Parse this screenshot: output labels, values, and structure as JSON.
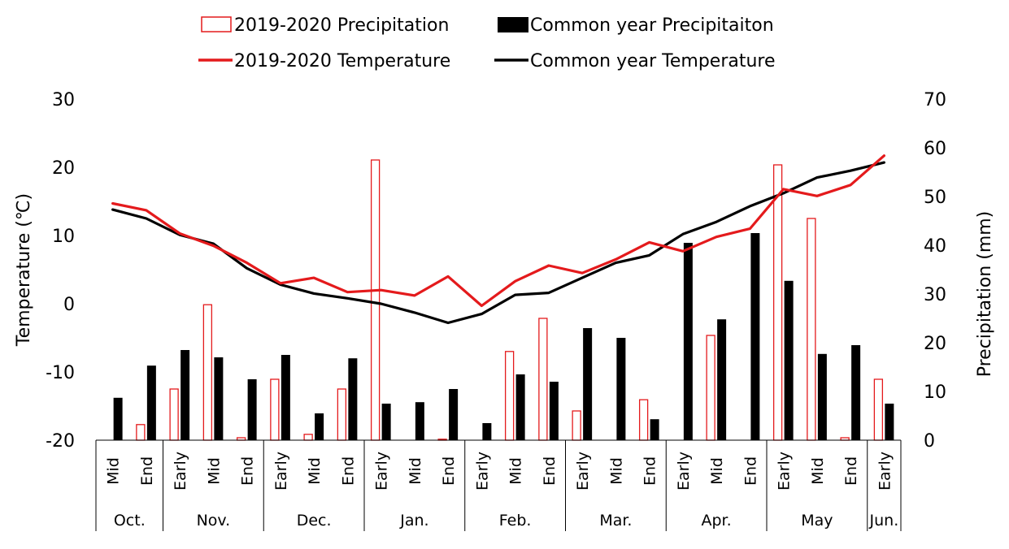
{
  "chart_data": {
    "type": "bar",
    "title": "",
    "ylabel": "Temperature (℃)",
    "y2label": "Precipitation (mm)",
    "ylim": [
      -20,
      30
    ],
    "y2lim": [
      0,
      70
    ],
    "yticks": [
      "30",
      "20",
      "10",
      "0",
      "-10",
      "-20"
    ],
    "y2ticks": [
      "70",
      "60",
      "50",
      "40",
      "30",
      "20",
      "10",
      "0"
    ],
    "categories": [
      "Mid",
      "End",
      "Early",
      "Mid",
      "End",
      "Early",
      "Mid",
      "End",
      "Early",
      "Mid",
      "End",
      "Early",
      "Mid",
      "End",
      "Early",
      "Mid",
      "End",
      "Early",
      "Mid",
      "End",
      "Early",
      "Mid",
      "End",
      "Early"
    ],
    "months": [
      {
        "name": "Oct.",
        "span": 2
      },
      {
        "name": "Nov.",
        "span": 3
      },
      {
        "name": "Dec.",
        "span": 3
      },
      {
        "name": "Jan.",
        "span": 3
      },
      {
        "name": "Feb.",
        "span": 3
      },
      {
        "name": "Mar.",
        "span": 3
      },
      {
        "name": "Apr.",
        "span": 3
      },
      {
        "name": "May",
        "span": 3
      },
      {
        "name": "Jun.",
        "span": 1
      }
    ],
    "legend": [
      "2019-2020 Precipitation",
      "Common year Precipitaiton",
      "2019-2020 Temperature",
      "Common year Temperature"
    ],
    "legend_position": "top",
    "colors": {
      "red": "#e41a1c",
      "black": "#000000"
    },
    "series": [
      {
        "name": "2019-2020 Precipitation",
        "kind": "bar",
        "axis": "right",
        "style": "hollow-red",
        "values": [
          0,
          3.2,
          10.5,
          27.8,
          0.5,
          12.5,
          1.2,
          10.5,
          57.5,
          0,
          0.2,
          0,
          18.2,
          25,
          6,
          0,
          8.3,
          0,
          21.5,
          0,
          56.5,
          45.5,
          0.5,
          12.5
        ]
      },
      {
        "name": "Common year Precipitaiton",
        "kind": "bar",
        "axis": "right",
        "style": "solid-black",
        "values": [
          8.7,
          15.3,
          18.5,
          17,
          12.5,
          17.5,
          5.5,
          16.8,
          7.5,
          7.8,
          10.5,
          3.5,
          13.5,
          12,
          23,
          21,
          4.3,
          40.5,
          24.8,
          42.5,
          32.7,
          17.7,
          19.5,
          7.5
        ]
      },
      {
        "name": "2019-2020 Temperature",
        "kind": "line",
        "axis": "left",
        "color": "#e41a1c",
        "values": [
          14.7,
          13.7,
          10.3,
          8.5,
          6,
          3,
          3.8,
          1.7,
          2,
          1.2,
          4,
          -0.3,
          3.3,
          5.6,
          4.5,
          6.5,
          9,
          7.7,
          9.8,
          11,
          16.8,
          15.8,
          17.4,
          21.7
        ]
      },
      {
        "name": "Common year Temperature",
        "kind": "line",
        "axis": "left",
        "color": "#000000",
        "values": [
          13.8,
          12.5,
          10.1,
          8.8,
          5.2,
          2.8,
          1.5,
          0.8,
          0,
          -1.3,
          -2.8,
          -1.5,
          1.3,
          1.6,
          3.8,
          6,
          7.1,
          10.2,
          12,
          14.3,
          16.2,
          18.5,
          19.5,
          20.7
        ]
      }
    ]
  }
}
